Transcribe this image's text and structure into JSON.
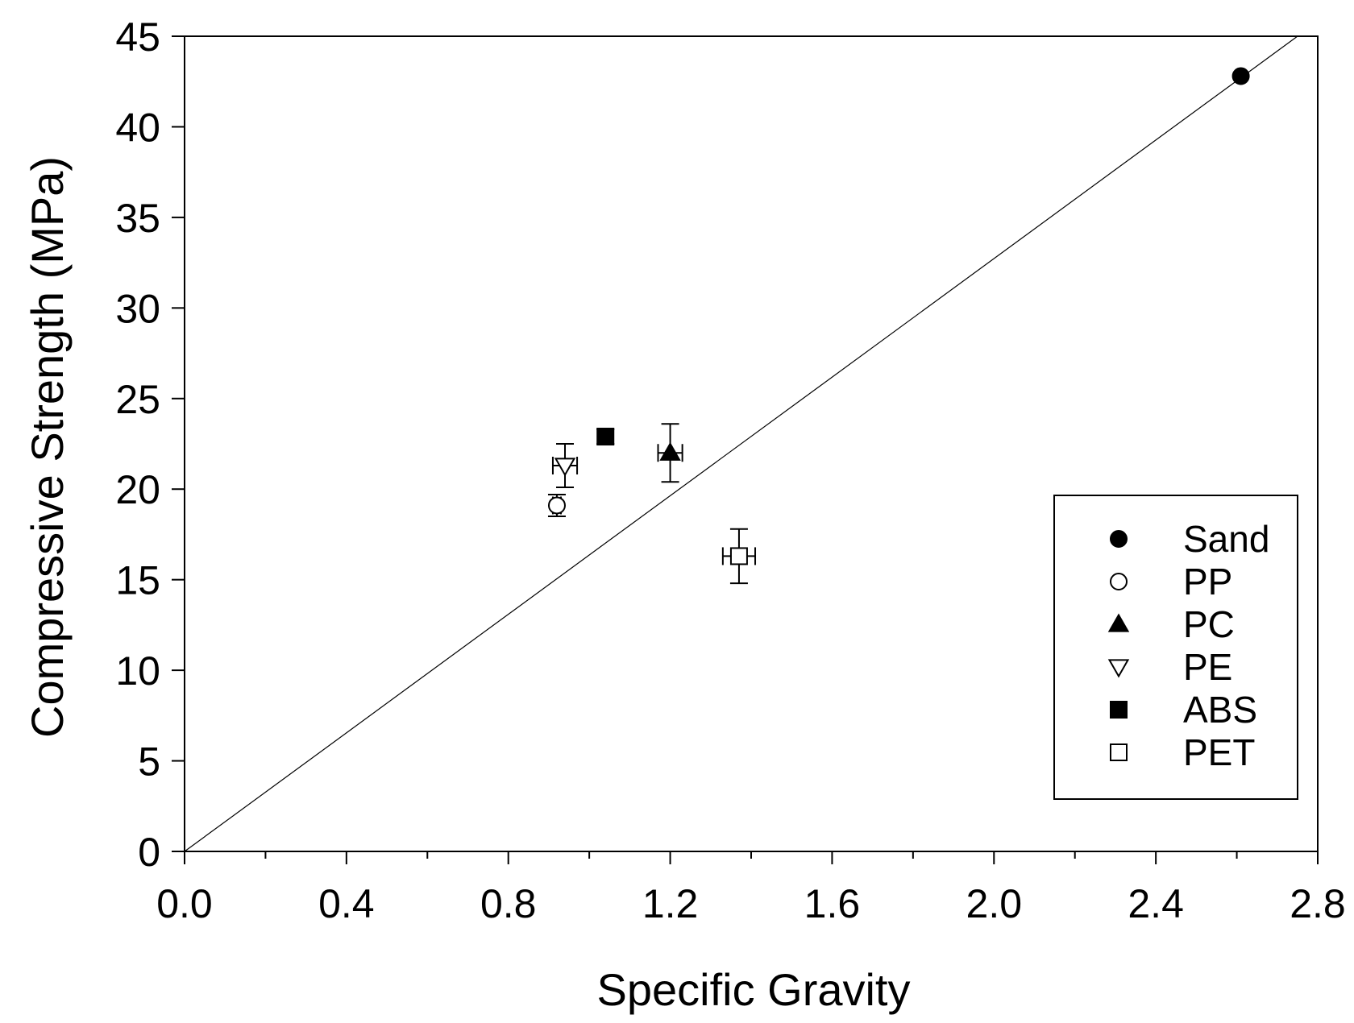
{
  "chart_data": {
    "type": "scatter",
    "title": "",
    "xlabel": "Specific Gravity",
    "ylabel": "Compressive Strength (MPa)",
    "xlim": [
      0.0,
      2.8
    ],
    "ylim": [
      0,
      45
    ],
    "x_ticks": [
      "0.0",
      "0.4",
      "0.8",
      "1.2",
      "1.6",
      "2.0",
      "2.4",
      "2.8"
    ],
    "x_tick_values": [
      0.0,
      0.4,
      0.8,
      1.2,
      1.6,
      2.0,
      2.4,
      2.8
    ],
    "x_minor_step": 0.2,
    "y_ticks": [
      "0",
      "5",
      "10",
      "15",
      "20",
      "25",
      "30",
      "35",
      "40",
      "45"
    ],
    "y_tick_values": [
      0,
      5,
      10,
      15,
      20,
      25,
      30,
      35,
      40,
      45
    ],
    "grid": false,
    "legend_position": "lower-right",
    "series": [
      {
        "name": "Sand",
        "marker": "circle-filled",
        "x": 2.61,
        "y": 42.8,
        "x_err": 0.0,
        "y_err": 0.0
      },
      {
        "name": "PP",
        "marker": "circle-open",
        "x": 0.92,
        "y": 19.1,
        "x_err": 0.01,
        "y_err": 0.6
      },
      {
        "name": "PC",
        "marker": "triangle-filled",
        "x": 1.2,
        "y": 22.0,
        "x_err": 0.03,
        "y_err": 1.6
      },
      {
        "name": "PE",
        "marker": "triangle-down-open",
        "x": 0.94,
        "y": 21.3,
        "x_err": 0.03,
        "y_err": 1.2
      },
      {
        "name": "ABS",
        "marker": "square-filled",
        "x": 1.04,
        "y": 22.9,
        "x_err": 0.01,
        "y_err": 0.4
      },
      {
        "name": "PET",
        "marker": "square-open",
        "x": 1.37,
        "y": 16.3,
        "x_err": 0.04,
        "y_err": 1.5
      }
    ],
    "reference_line": {
      "x": [
        0.0,
        2.75
      ],
      "y": [
        0.0,
        45.0
      ]
    }
  }
}
